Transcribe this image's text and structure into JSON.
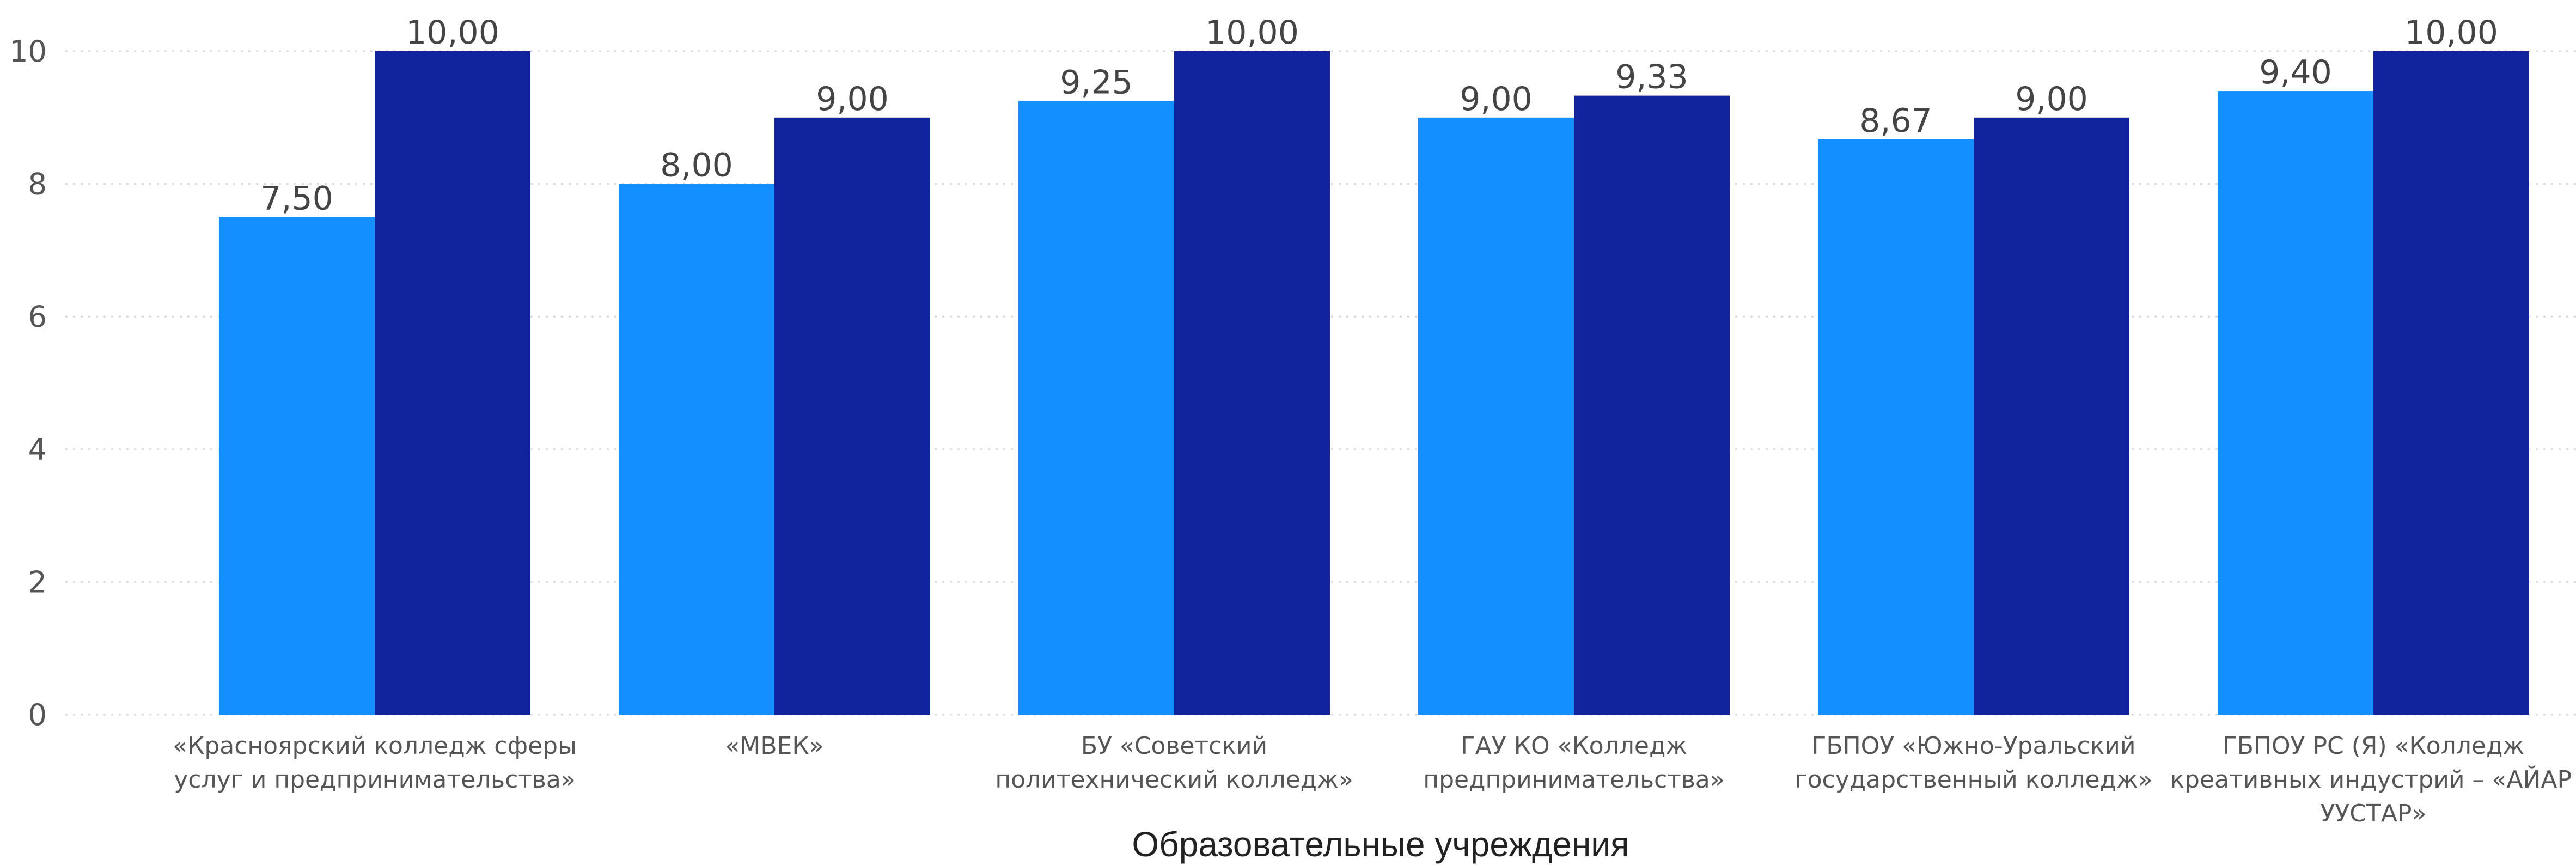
{
  "chart_data": {
    "type": "bar",
    "categories": [
      [
        "«Красноярский колледж сферы",
        "услуг и предпринимательства»"
      ],
      [
        "«МВЕК»"
      ],
      [
        "БУ «Советский",
        "политехнический колледж»"
      ],
      [
        "ГАУ КО «Колледж",
        "предпринимательства»"
      ],
      [
        "ГБПОУ «Южно-Уральский",
        "государственный колледж»"
      ],
      [
        "ГБПОУ РС (Я) «Колледж",
        "креативных индустрий – «АЙАР",
        "УУСТАР»"
      ]
    ],
    "series": [
      {
        "color": "#148FFF",
        "values": [
          7.5,
          8.0,
          9.25,
          9.0,
          8.67,
          9.4
        ],
        "labels": [
          "7,50",
          "8,00",
          "9,25",
          "9,00",
          "8,67",
          "9,40"
        ]
      },
      {
        "color": "#12239E",
        "values": [
          10.0,
          9.0,
          10.0,
          9.33,
          9.0,
          10.0
        ],
        "labels": [
          "10,00",
          "9,00",
          "10,00",
          "9,33",
          "9,00",
          "10,00"
        ]
      }
    ],
    "xlabel": "Образовательные учреждения",
    "ylabel": "",
    "title": "",
    "ylim": [
      0,
      10
    ],
    "yticks": [
      0,
      2,
      4,
      6,
      8,
      10
    ],
    "grid": true,
    "legend": "none"
  }
}
